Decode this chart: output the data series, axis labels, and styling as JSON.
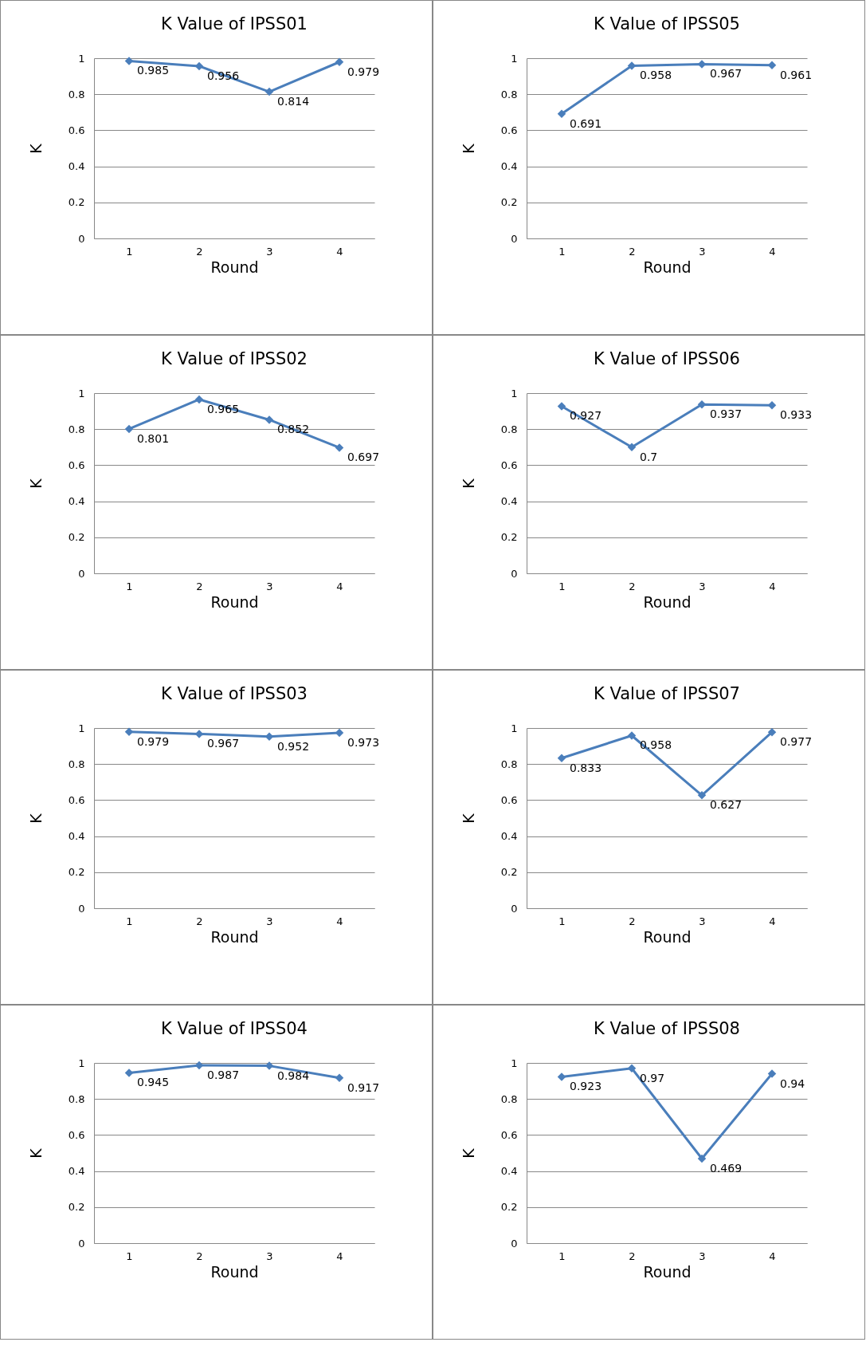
{
  "chart_data": [
    {
      "type": "line",
      "title": "K Value of IPSS01",
      "xlabel": "Round",
      "ylabel": "K",
      "categories": [
        "1",
        "2",
        "3",
        "4"
      ],
      "values": [
        0.985,
        0.956,
        0.814,
        0.979
      ],
      "color": "#4a7ebb",
      "ylim": [
        0,
        1
      ],
      "yticks": [
        0,
        0.2,
        0.4,
        0.6,
        0.8,
        1
      ],
      "grid": "y",
      "marker": "diamond",
      "data_labels": true
    },
    {
      "type": "line",
      "title": "K Value of IPSS05",
      "xlabel": "Round",
      "ylabel": "K",
      "categories": [
        "1",
        "2",
        "3",
        "4"
      ],
      "values": [
        0.691,
        0.958,
        0.967,
        0.961
      ],
      "color": "#4a7ebb",
      "ylim": [
        0,
        1
      ],
      "yticks": [
        0,
        0.2,
        0.4,
        0.6,
        0.8,
        1
      ],
      "grid": "y",
      "marker": "diamond",
      "data_labels": true
    },
    {
      "type": "line",
      "title": "K Value of IPSS02",
      "xlabel": "Round",
      "ylabel": "K",
      "categories": [
        "1",
        "2",
        "3",
        "4"
      ],
      "values": [
        0.801,
        0.965,
        0.852,
        0.697
      ],
      "color": "#4a7ebb",
      "ylim": [
        0,
        1
      ],
      "yticks": [
        0,
        0.2,
        0.4,
        0.6,
        0.8,
        1
      ],
      "grid": "y",
      "marker": "diamond",
      "data_labels": true
    },
    {
      "type": "line",
      "title": "K Value of IPSS06",
      "xlabel": "Round",
      "ylabel": "K",
      "categories": [
        "1",
        "2",
        "3",
        "4"
      ],
      "values": [
        0.927,
        0.7,
        0.937,
        0.933
      ],
      "color": "#4a7ebb",
      "ylim": [
        0,
        1
      ],
      "yticks": [
        0,
        0.2,
        0.4,
        0.6,
        0.8,
        1
      ],
      "grid": "y",
      "marker": "diamond",
      "data_labels": true
    },
    {
      "type": "line",
      "title": "K Value of IPSS03",
      "xlabel": "Round",
      "ylabel": "K",
      "categories": [
        "1",
        "2",
        "3",
        "4"
      ],
      "values": [
        0.979,
        0.967,
        0.952,
        0.973
      ],
      "color": "#4a7ebb",
      "ylim": [
        0,
        1
      ],
      "yticks": [
        0,
        0.2,
        0.4,
        0.6,
        0.8,
        1
      ],
      "grid": "y",
      "marker": "diamond",
      "data_labels": true
    },
    {
      "type": "line",
      "title": "K Value of IPSS07",
      "xlabel": "Round",
      "ylabel": "K",
      "categories": [
        "1",
        "2",
        "3",
        "4"
      ],
      "values": [
        0.833,
        0.958,
        0.627,
        0.977
      ],
      "color": "#4a7ebb",
      "ylim": [
        0,
        1
      ],
      "yticks": [
        0,
        0.2,
        0.4,
        0.6,
        0.8,
        1
      ],
      "grid": "y",
      "marker": "diamond",
      "data_labels": true
    },
    {
      "type": "line",
      "title": "K Value of IPSS04",
      "xlabel": "Round",
      "ylabel": "K",
      "categories": [
        "1",
        "2",
        "3",
        "4"
      ],
      "values": [
        0.945,
        0.987,
        0.984,
        0.917
      ],
      "color": "#4a7ebb",
      "ylim": [
        0,
        1
      ],
      "yticks": [
        0,
        0.2,
        0.4,
        0.6,
        0.8,
        1
      ],
      "grid": "y",
      "marker": "diamond",
      "data_labels": true
    },
    {
      "type": "line",
      "title": "K Value of IPSS08",
      "xlabel": "Round",
      "ylabel": "K",
      "categories": [
        "1",
        "2",
        "3",
        "4"
      ],
      "values": [
        0.923,
        0.97,
        0.469,
        0.94
      ],
      "color": "#4a7ebb",
      "ylim": [
        0,
        1
      ],
      "yticks": [
        0,
        0.2,
        0.4,
        0.6,
        0.8,
        1
      ],
      "grid": "y",
      "marker": "diamond",
      "data_labels": true
    }
  ]
}
